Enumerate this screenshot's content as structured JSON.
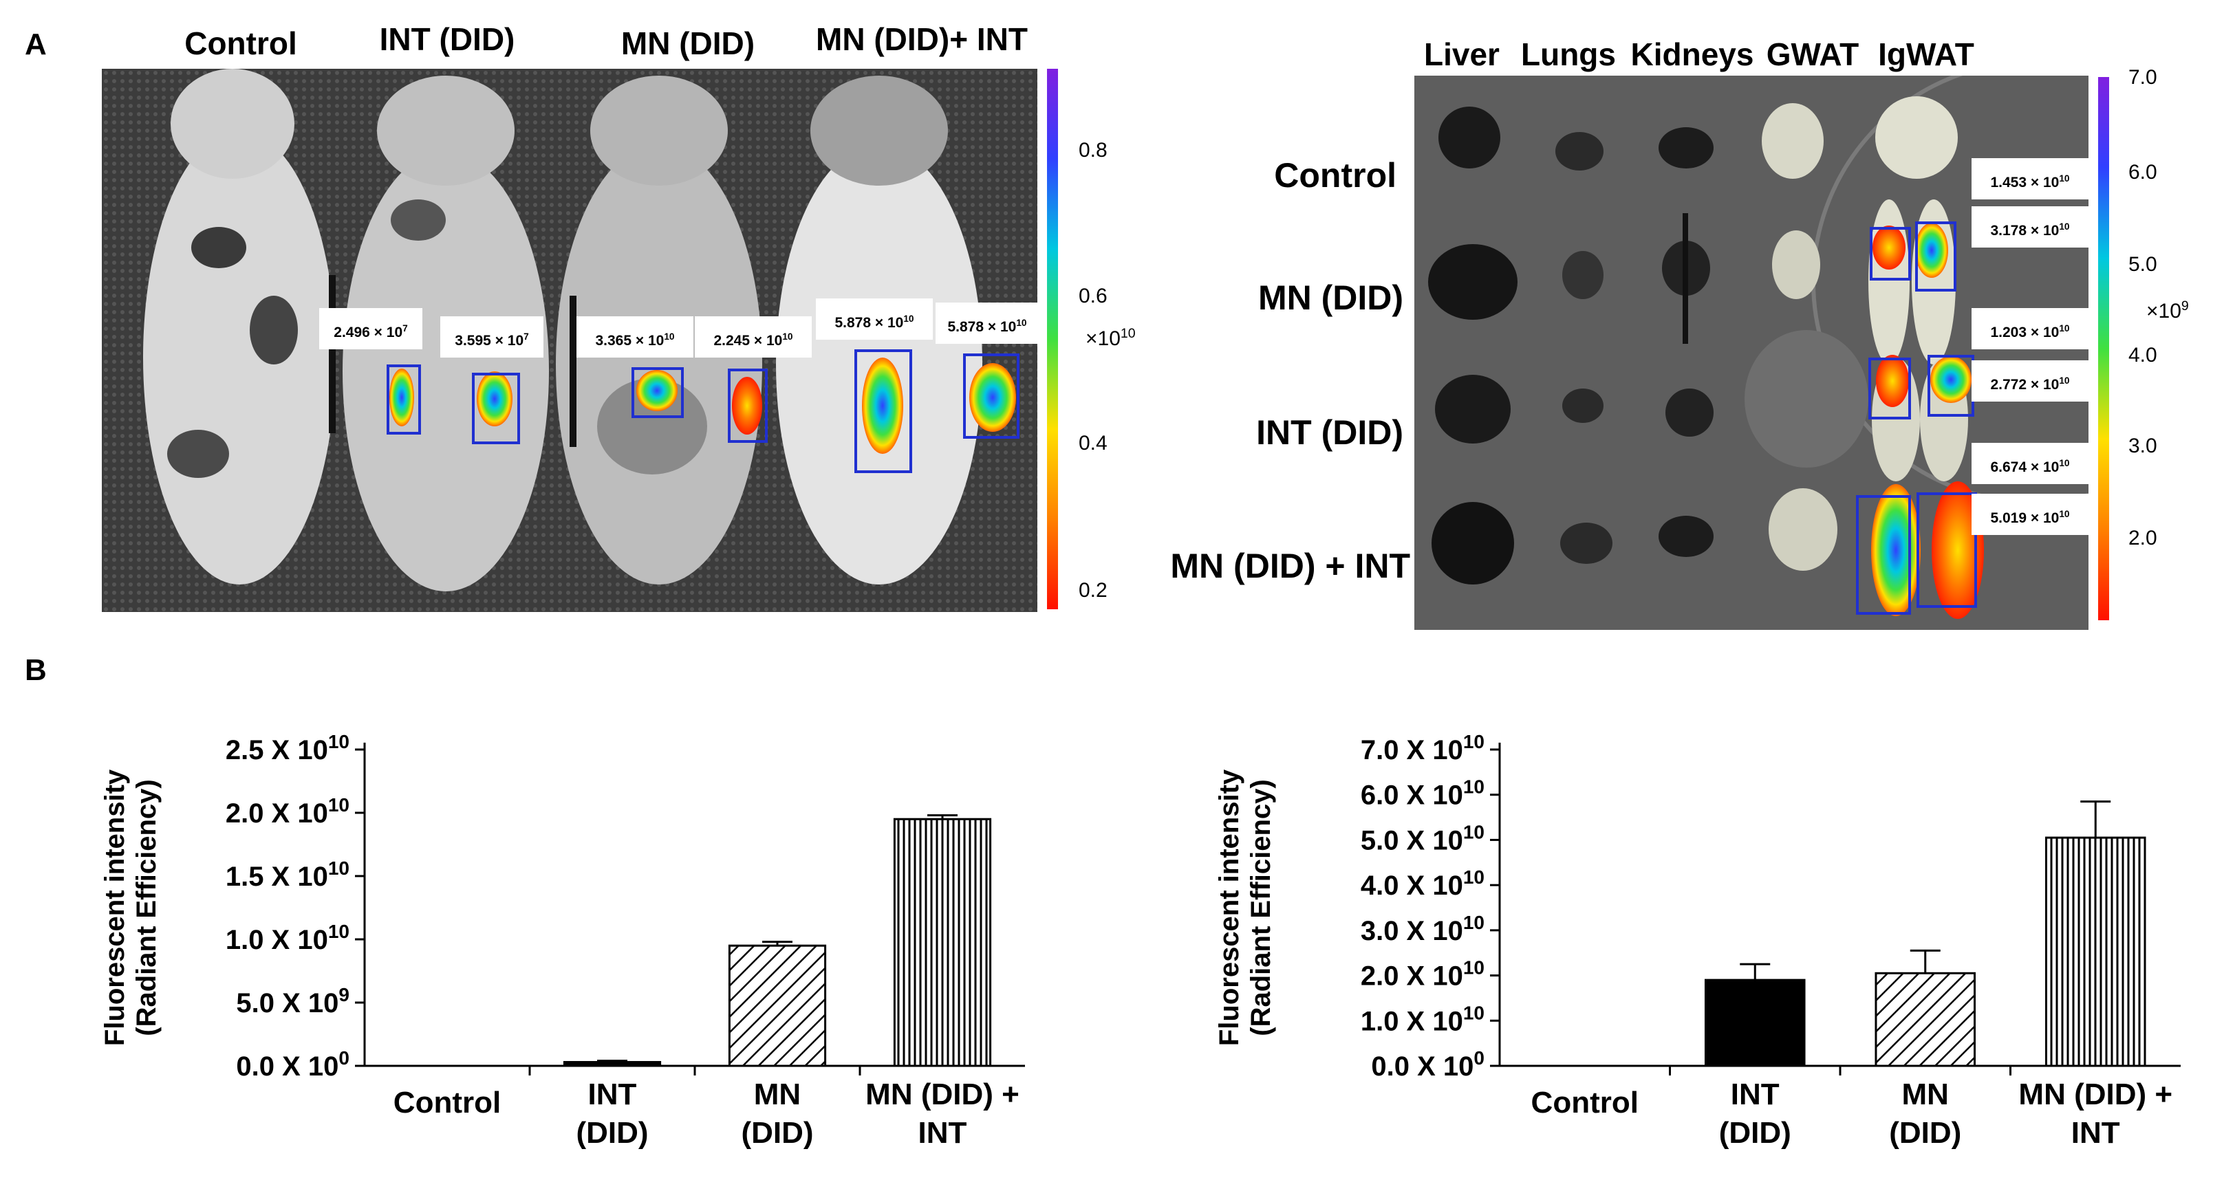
{
  "panel_labels": {
    "a": "A",
    "b": "B"
  },
  "imaging_left": {
    "group_labels": [
      "Control",
      "INT (DID)",
      "MN (DID)",
      "MN (DID)+ INT"
    ],
    "roi_labels": {
      "int_1": "2.496 × 10^7",
      "int_2": "3.595 × 10^7",
      "mn_1": "3.365 × 10^10",
      "mn_2": "2.245 × 10^10",
      "combo_1": "5.878 × 10^10",
      "combo_2": "5.878 × 10^10"
    },
    "colorbar": {
      "ticks": [
        "0.8",
        "0.6",
        "0.4",
        "0.2"
      ],
      "unit": "×10^10"
    }
  },
  "imaging_right": {
    "organ_labels": [
      "Liver",
      "Lungs",
      "Kidneys",
      "GWAT",
      "IgWAT"
    ],
    "row_labels": [
      "Control",
      "MN (DID)",
      "INT (DID)",
      "MN (DID) + INT"
    ],
    "roi_labels": {
      "mn_1": "1.453 × 10^10",
      "mn_2": "3.178 × 10^10",
      "int_1": "1.203 × 10^10",
      "int_2": "2.772 × 10^10",
      "combo_1": "6.674 × 10^10",
      "combo_2": "5.019 × 10^10"
    },
    "colorbar": {
      "ticks": [
        "7.0",
        "6.0",
        "5.0",
        "4.0",
        "3.0",
        "2.0"
      ],
      "unit": "×10^9"
    }
  },
  "chart_data": [
    {
      "type": "bar",
      "title": "",
      "xlabel": "",
      "ylabel": "Fluorescent intensity (Radiant Efficiency)",
      "ylabel_lines": [
        "Fluorescent intensity",
        "(Radiant Efficiency)"
      ],
      "category_lines": [
        [
          "Control"
        ],
        [
          "INT",
          "(DID)"
        ],
        [
          "MN",
          "(DID)"
        ],
        [
          "MN (DID) +",
          "INT"
        ]
      ],
      "categories": [
        "Control",
        "INT (DID)",
        "MN (DID)",
        "MN (DID) + INT"
      ],
      "values": [
        0,
        300000000.0,
        9500000000.0,
        19500000000.0
      ],
      "errors": [
        0,
        100000000.0,
        300000000.0,
        300000000.0
      ],
      "patterns": [
        "none",
        "solid",
        "diag",
        "vert"
      ],
      "ylim": [
        0,
        25000000000.0
      ],
      "ytick_labels": [
        {
          "mantissa": "0.0",
          "exponent": "0"
        },
        {
          "mantissa": "5.0",
          "exponent": "9"
        },
        {
          "mantissa": "1.0",
          "exponent": "10"
        },
        {
          "mantissa": "1.5",
          "exponent": "10"
        },
        {
          "mantissa": "2.0",
          "exponent": "10"
        },
        {
          "mantissa": "2.5",
          "exponent": "10"
        }
      ]
    },
    {
      "type": "bar",
      "title": "",
      "xlabel": "",
      "ylabel": "Fluorescent intensity (Radiant Efficiency)",
      "ylabel_lines": [
        "Fluorescent intensity",
        "(Radiant Efficiency)"
      ],
      "category_lines": [
        [
          "Control"
        ],
        [
          "INT",
          "(DID)"
        ],
        [
          "MN",
          "(DID)"
        ],
        [
          "MN (DID) +",
          "INT"
        ]
      ],
      "categories": [
        "Control",
        "INT (DID)",
        "MN (DID)",
        "MN (DID) + INT"
      ],
      "values": [
        0,
        19000000000.0,
        20500000000.0,
        50500000000.0
      ],
      "errors": [
        0,
        3500000000.0,
        5000000000.0,
        8000000000.0
      ],
      "patterns": [
        "none",
        "solid",
        "diag",
        "vert"
      ],
      "ylim": [
        0,
        70000000000.0
      ],
      "ytick_labels": [
        {
          "mantissa": "0.0",
          "exponent": "0"
        },
        {
          "mantissa": "1.0",
          "exponent": "10"
        },
        {
          "mantissa": "2.0",
          "exponent": "10"
        },
        {
          "mantissa": "3.0",
          "exponent": "10"
        },
        {
          "mantissa": "4.0",
          "exponent": "10"
        },
        {
          "mantissa": "5.0",
          "exponent": "10"
        },
        {
          "mantissa": "6.0",
          "exponent": "10"
        },
        {
          "mantissa": "7.0",
          "exponent": "10"
        }
      ]
    }
  ]
}
